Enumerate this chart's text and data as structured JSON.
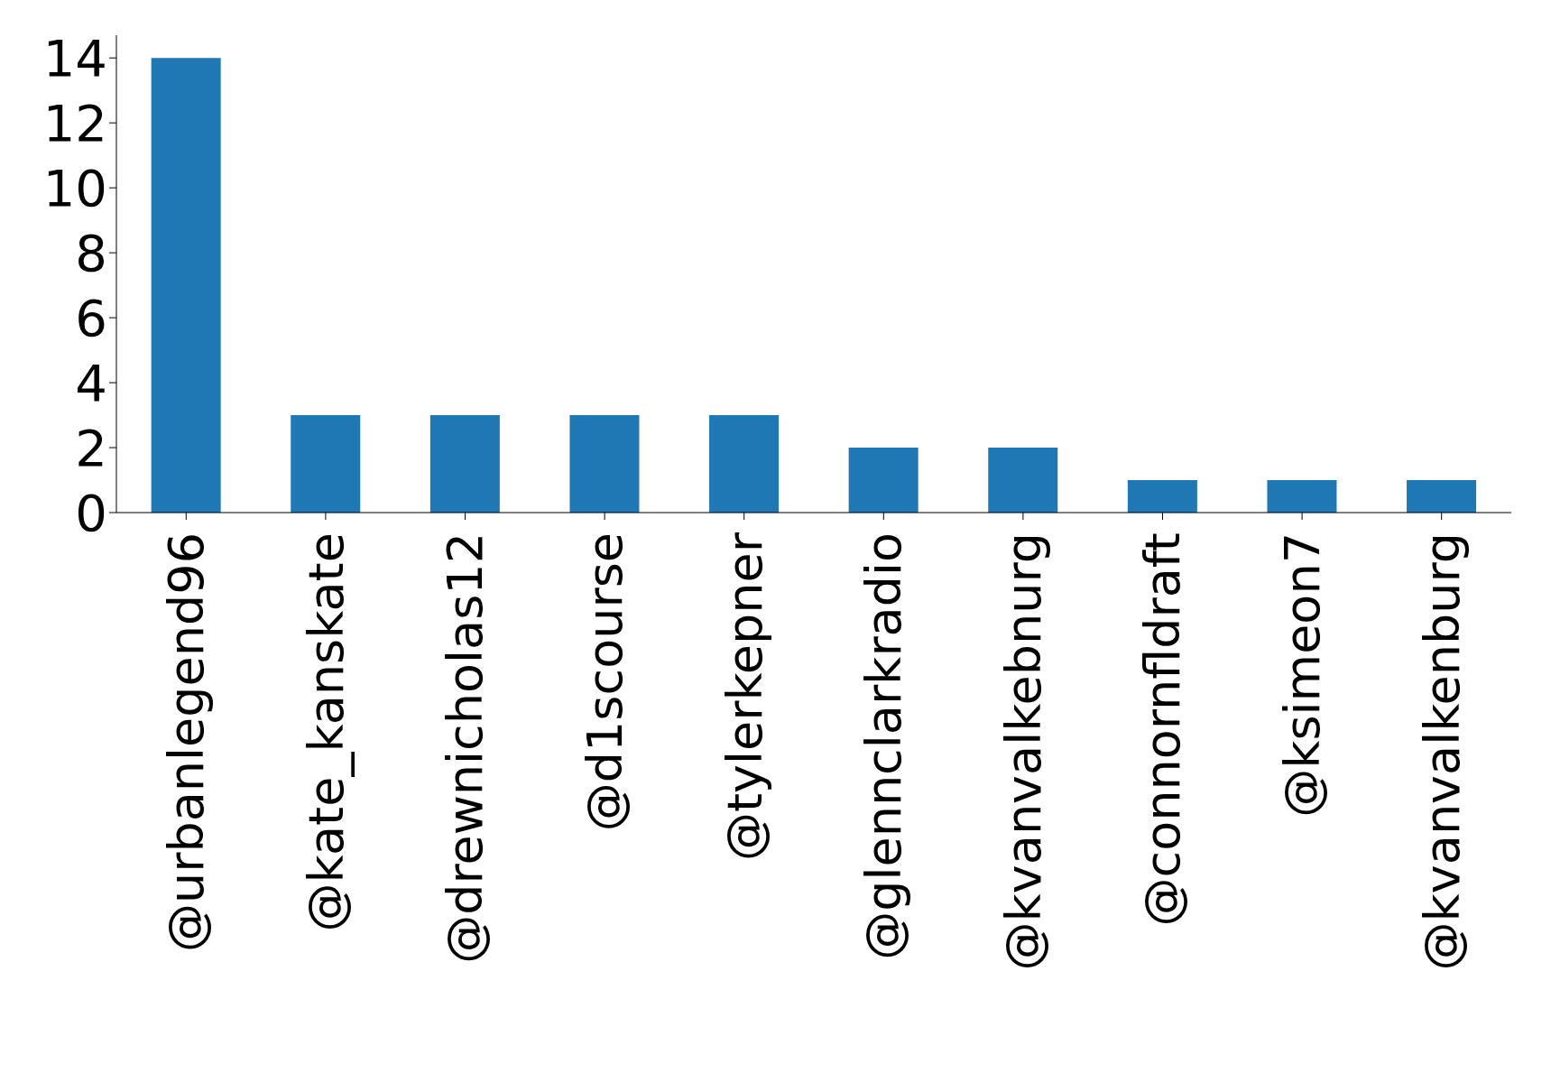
{
  "chart_data": {
    "type": "bar",
    "categories": [
      "@urbanlegend96",
      "@kate_kanskate",
      "@drewnicholas12",
      "@d1scourse",
      "@tylerkepner",
      "@glennclarkradio",
      "@kvanvalkebnurg",
      "@connornfldraft",
      "@ksimeon7",
      "@kvanvalkenburg"
    ],
    "values": [
      14,
      3,
      3,
      3,
      3,
      2,
      2,
      1,
      1,
      1
    ],
    "color": "#1f77b4",
    "ylim": [
      0,
      14.7
    ],
    "yticks": [
      0,
      2,
      4,
      6,
      8,
      10,
      12,
      14
    ],
    "grid": false,
    "legend": false
  }
}
